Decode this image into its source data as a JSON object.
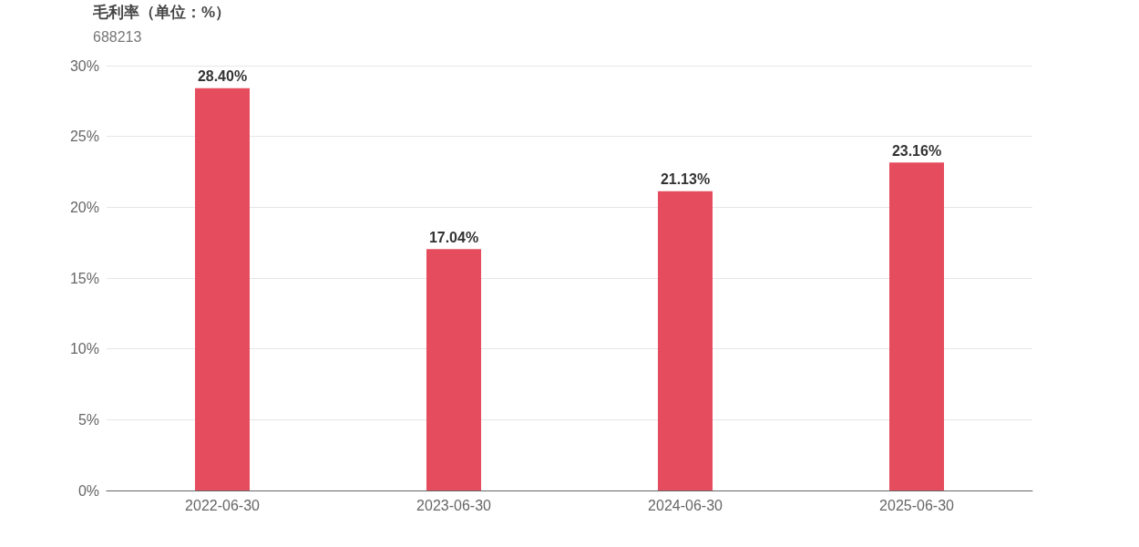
{
  "chart_data": {
    "type": "bar",
    "title": "毛利率（单位：%）",
    "subtitle": "688213",
    "categories": [
      "2022-06-30",
      "2023-06-30",
      "2024-06-30",
      "2025-06-30"
    ],
    "values": [
      28.4,
      17.04,
      21.13,
      23.16
    ],
    "value_labels": [
      "28.40%",
      "17.04%",
      "21.13%",
      "23.16%"
    ],
    "color": "#e54c5e",
    "ylim": [
      0,
      30
    ],
    "yticks": [
      {
        "value": 0,
        "label": "0%"
      },
      {
        "value": 5,
        "label": "5%"
      },
      {
        "value": 10,
        "label": "10%"
      },
      {
        "value": 15,
        "label": "15%"
      },
      {
        "value": 20,
        "label": "20%"
      },
      {
        "value": 25,
        "label": "25%"
      },
      {
        "value": 30,
        "label": "30%"
      }
    ],
    "grid": "y"
  }
}
